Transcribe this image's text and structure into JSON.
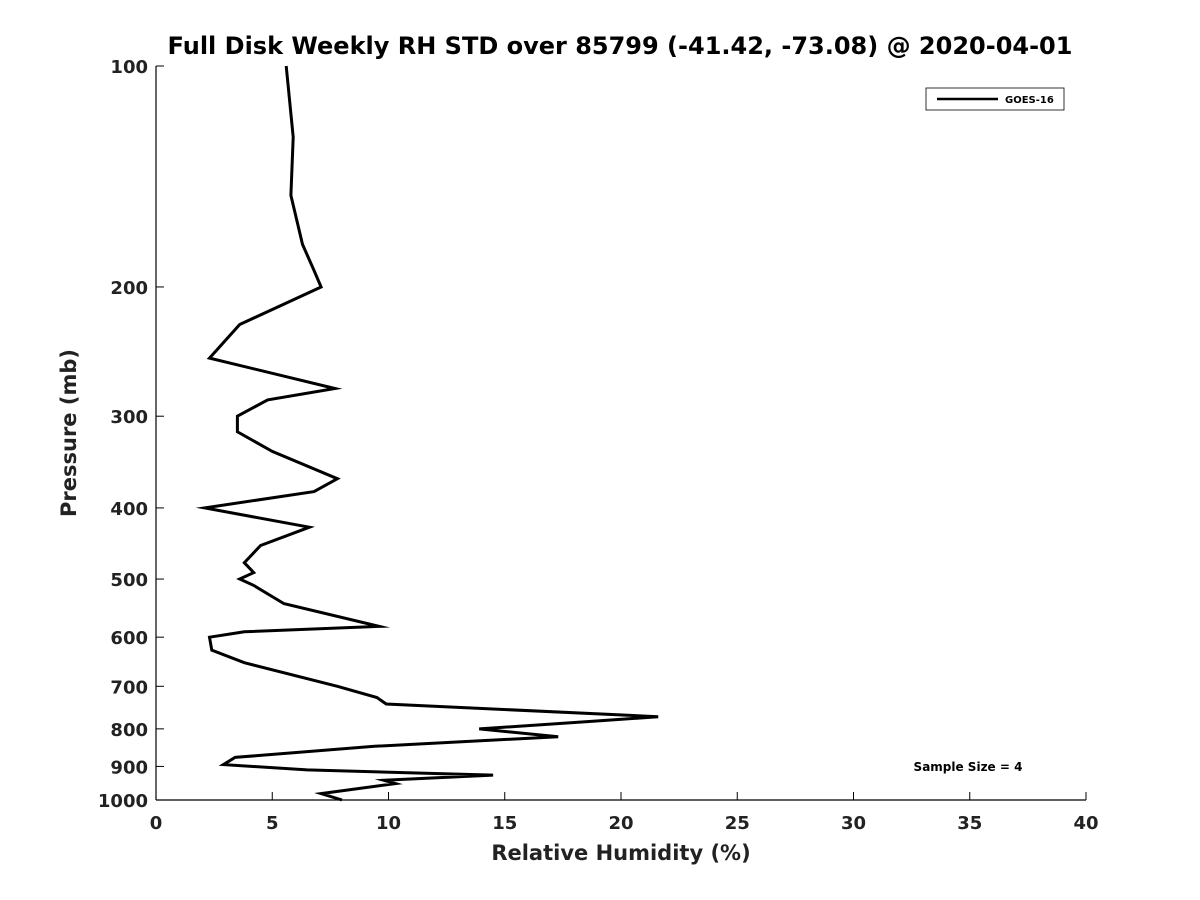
{
  "chart_data": {
    "type": "line",
    "title": "Full Disk Weekly RH STD over 85799 (-41.42, -73.08) @ 2020-04-01",
    "xlabel": "Relative Humidity (%)",
    "ylabel": "Pressure (mb)",
    "xlim": [
      0,
      40
    ],
    "ylim": [
      100,
      1000
    ],
    "y_scale": "log",
    "y_reversed": true,
    "x_ticks": [
      0,
      5,
      10,
      15,
      20,
      25,
      30,
      35,
      40
    ],
    "x_tick_labels": [
      "0",
      "5",
      "10",
      "15",
      "20",
      "25",
      "30",
      "35",
      "40"
    ],
    "y_ticks": [
      100,
      200,
      300,
      400,
      500,
      600,
      700,
      800,
      900,
      1000
    ],
    "y_tick_labels": [
      "100",
      "200",
      "300",
      "400",
      "500",
      "600",
      "700",
      "800",
      "900",
      "1000"
    ],
    "legend": {
      "location": "top-right",
      "entries": [
        "GOES-16"
      ]
    },
    "annotation": "Sample Size = 4",
    "series": [
      {
        "name": "GOES-16",
        "color": "#000000",
        "x": [
          5.6,
          5.9,
          5.8,
          6.3,
          6.8,
          7.1,
          3.6,
          2.3,
          7.7,
          4.8,
          3.5,
          3.5,
          5.0,
          7.8,
          6.8,
          2.1,
          6.6,
          4.5,
          3.8,
          4.2,
          3.6,
          4.2,
          5.5,
          9.6,
          3.8,
          2.3,
          2.4,
          3.8,
          7.8,
          9.5,
          9.9,
          21.6,
          19.1,
          13.9,
          17.3,
          9.4,
          3.4,
          2.9,
          6.5,
          14.5,
          9.8,
          10.3,
          7.1,
          8.0
        ],
        "y": [
          100,
          125,
          150,
          175,
          190,
          200,
          225,
          250,
          275,
          285,
          300,
          315,
          335,
          365,
          380,
          400,
          425,
          450,
          475,
          490,
          500,
          510,
          540,
          580,
          590,
          600,
          625,
          650,
          700,
          725,
          740,
          770,
          780,
          800,
          820,
          845,
          875,
          895,
          910,
          925,
          940,
          950,
          980,
          1000
        ]
      }
    ]
  }
}
